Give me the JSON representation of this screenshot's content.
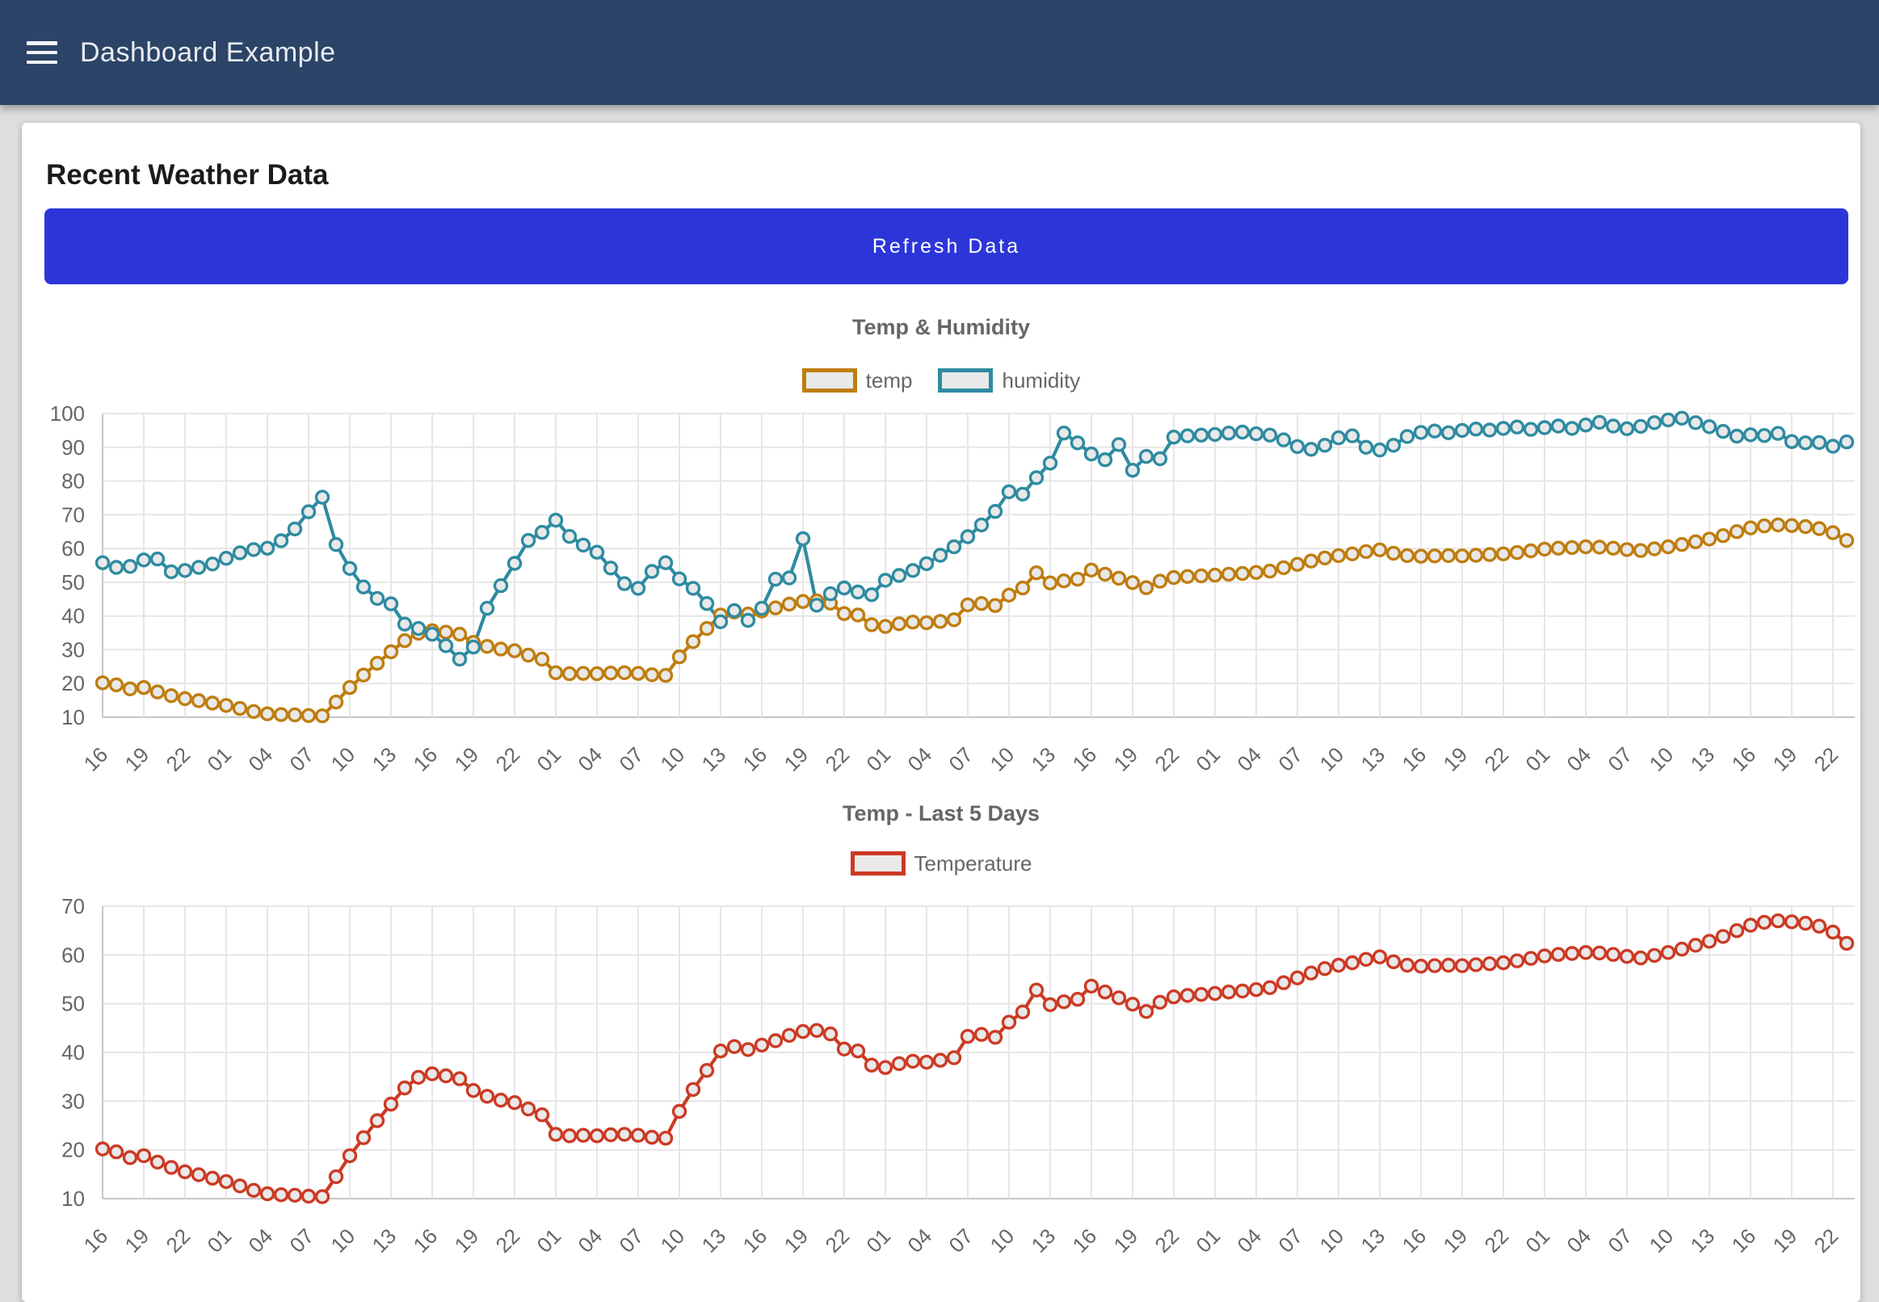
{
  "header": {
    "title": "Dashboard Example",
    "background": "#2b4467"
  },
  "card": {
    "heading": "Recent Weather Data",
    "refresh_button": {
      "label": "Refresh Data",
      "color": "#2c36d8"
    }
  },
  "chart_data": [
    {
      "type": "line",
      "title": "Temp & Humidity",
      "legend_position": "top",
      "grid": true,
      "ylim": [
        10,
        100
      ],
      "ytick_step": 10,
      "points_per_tick": 3,
      "x_tick_labels": [
        "16",
        "19",
        "22",
        "01",
        "04",
        "07",
        "10",
        "13",
        "16",
        "19",
        "22",
        "01",
        "04",
        "07",
        "10",
        "13",
        "16",
        "19",
        "22",
        "01",
        "04",
        "07",
        "10",
        "13",
        "16",
        "19",
        "22",
        "01",
        "04",
        "07",
        "10",
        "13",
        "16",
        "19",
        "22",
        "01",
        "04",
        "07",
        "10",
        "13",
        "16",
        "19",
        "22"
      ],
      "series": [
        {
          "name": "temp",
          "color": "#bf7d0f",
          "values": [
            20.2,
            19.6,
            18.4,
            18.8,
            17.5,
            16.4,
            15.5,
            14.9,
            14.2,
            13.5,
            12.6,
            11.7,
            11.0,
            10.8,
            10.7,
            10.5,
            10.4,
            14.5,
            18.8,
            22.5,
            26.0,
            29.4,
            32.7,
            34.9,
            35.6,
            35.2,
            34.6,
            32.2,
            31.0,
            30.2,
            29.7,
            28.4,
            27.2,
            23.2,
            22.9,
            23.0,
            22.9,
            23.1,
            23.2,
            23.0,
            22.6,
            22.4,
            27.9,
            32.4,
            36.3,
            40.3,
            41.2,
            40.6,
            41.5,
            42.4,
            43.5,
            44.3,
            44.5,
            43.8,
            40.7,
            40.3,
            37.4,
            36.9,
            37.7,
            38.2,
            38.0,
            38.4,
            38.9,
            43.3,
            43.7,
            43.1,
            46.2,
            48.3,
            52.8,
            49.8,
            50.4,
            50.9,
            53.6,
            52.4,
            51.2,
            49.9,
            48.4,
            50.3,
            51.4,
            51.7,
            51.9,
            52.1,
            52.4,
            52.6,
            52.9,
            53.3,
            54.3,
            55.3,
            56.3,
            57.2,
            57.9,
            58.4,
            59.1,
            59.6,
            58.6,
            57.9,
            57.7,
            57.8,
            57.9,
            57.8,
            58.0,
            58.2,
            58.4,
            58.8,
            59.3,
            59.8,
            60.1,
            60.3,
            60.5,
            60.4,
            60.1,
            59.7,
            59.4,
            59.9,
            60.5,
            61.2,
            62.0,
            62.8,
            63.8,
            65.0,
            66.1,
            66.7,
            67.0,
            66.8,
            66.5,
            65.9,
            64.7,
            62.4
          ]
        },
        {
          "name": "humidity",
          "color": "#2e8ba1",
          "values": [
            55.8,
            54.4,
            54.7,
            56.6,
            56.9,
            53.1,
            53.5,
            54.4,
            55.4,
            57.1,
            58.7,
            59.7,
            60.1,
            62.3,
            65.8,
            70.9,
            75.2,
            61.2,
            54.1,
            48.6,
            45.2,
            43.6,
            37.6,
            36.3,
            34.6,
            31.2,
            27.2,
            30.8,
            42.3,
            49.0,
            55.6,
            62.4,
            64.8,
            68.4,
            63.6,
            61.0,
            58.9,
            54.2,
            49.6,
            48.2,
            53.2,
            55.8,
            51.0,
            48.2,
            43.7,
            38.3,
            41.6,
            38.7,
            42.3,
            50.9,
            51.3,
            62.9,
            43.2,
            46.6,
            48.3,
            47.1,
            46.3,
            50.6,
            52.0,
            53.5,
            55.5,
            58.0,
            60.5,
            63.5,
            67.0,
            71.0,
            76.8,
            76.1,
            81.0,
            85.3,
            94.2,
            91.3,
            88.0,
            86.3,
            90.8,
            83.2,
            87.3,
            86.6,
            93.0,
            93.4,
            93.6,
            93.8,
            94.2,
            94.5,
            94.0,
            93.6,
            92.2,
            90.2,
            89.4,
            90.6,
            92.8,
            93.4,
            90.0,
            89.2,
            90.6,
            93.2,
            94.4,
            94.8,
            94.3,
            95.0,
            95.4,
            95.1,
            95.6,
            96.0,
            95.3,
            95.8,
            96.3,
            95.6,
            96.6,
            97.4,
            96.3,
            95.5,
            96.2,
            97.3,
            98.1,
            98.6,
            97.3,
            96.1,
            94.7,
            93.3,
            93.7,
            93.5,
            94.1,
            91.7,
            91.3,
            91.4,
            90.3,
            91.6
          ]
        }
      ]
    },
    {
      "type": "line",
      "title": "Temp - Last 5 Days",
      "legend_position": "top",
      "grid": true,
      "ylim": [
        10,
        70
      ],
      "ytick_step": 10,
      "points_per_tick": 3,
      "x_tick_labels": [
        "16",
        "19",
        "22",
        "01",
        "04",
        "07",
        "10",
        "13",
        "16",
        "19",
        "22",
        "01",
        "04",
        "07",
        "10",
        "13",
        "16",
        "19",
        "22",
        "01",
        "04",
        "07",
        "10",
        "13",
        "16",
        "19",
        "22",
        "01",
        "04",
        "07",
        "10",
        "13",
        "16",
        "19",
        "22",
        "01",
        "04",
        "07",
        "10",
        "13",
        "16",
        "19",
        "22"
      ],
      "series": [
        {
          "name": "Temperature",
          "color": "#cc3a24",
          "values": [
            20.2,
            19.6,
            18.4,
            18.8,
            17.5,
            16.4,
            15.5,
            14.9,
            14.2,
            13.5,
            12.6,
            11.7,
            11.0,
            10.8,
            10.7,
            10.5,
            10.4,
            14.5,
            18.8,
            22.5,
            26.0,
            29.4,
            32.7,
            34.9,
            35.6,
            35.2,
            34.6,
            32.2,
            31.0,
            30.2,
            29.7,
            28.4,
            27.2,
            23.2,
            22.9,
            23.0,
            22.9,
            23.1,
            23.2,
            23.0,
            22.6,
            22.4,
            27.9,
            32.4,
            36.3,
            40.3,
            41.2,
            40.6,
            41.5,
            42.4,
            43.5,
            44.3,
            44.5,
            43.8,
            40.7,
            40.3,
            37.4,
            36.9,
            37.7,
            38.2,
            38.0,
            38.4,
            38.9,
            43.3,
            43.7,
            43.1,
            46.2,
            48.3,
            52.8,
            49.8,
            50.4,
            50.9,
            53.6,
            52.4,
            51.2,
            49.9,
            48.4,
            50.3,
            51.4,
            51.7,
            51.9,
            52.1,
            52.4,
            52.6,
            52.9,
            53.3,
            54.3,
            55.3,
            56.3,
            57.2,
            57.9,
            58.4,
            59.1,
            59.6,
            58.6,
            57.9,
            57.7,
            57.8,
            57.9,
            57.8,
            58.0,
            58.2,
            58.4,
            58.8,
            59.3,
            59.8,
            60.1,
            60.3,
            60.5,
            60.4,
            60.1,
            59.7,
            59.4,
            59.9,
            60.5,
            61.2,
            62.0,
            62.8,
            63.8,
            65.0,
            66.1,
            66.7,
            67.0,
            66.8,
            66.5,
            65.9,
            64.7,
            62.4
          ]
        }
      ]
    }
  ]
}
